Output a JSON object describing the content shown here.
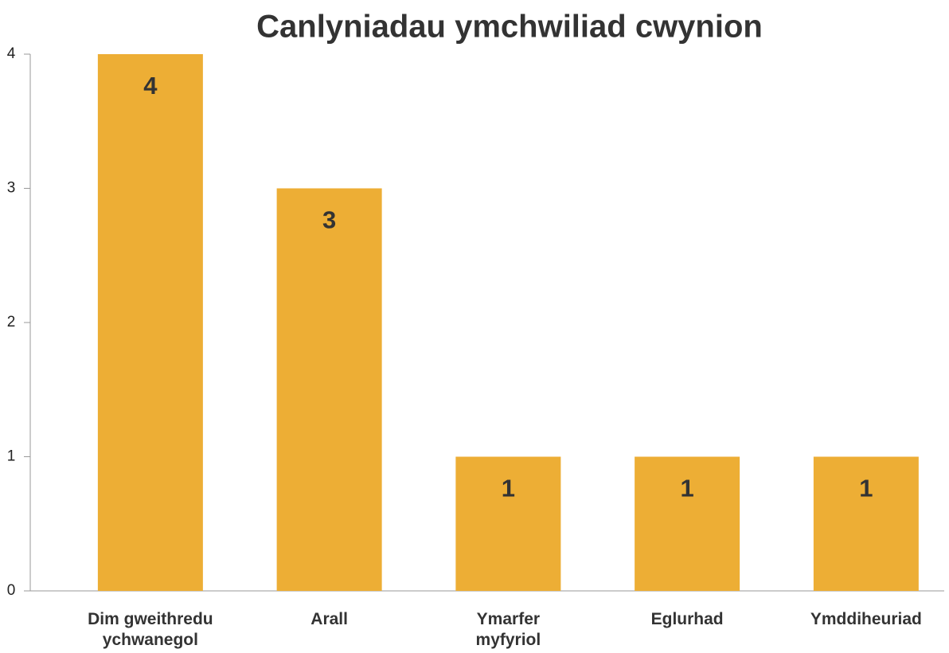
{
  "chart_data": {
    "type": "bar",
    "title": "Canlyniadau ymchwiliad cwynion",
    "categories": [
      "Dim gweithredu ychwanegol",
      "Arall",
      "Ymarfer myfyriol",
      "Eglurhad",
      "Ymddiheuriad"
    ],
    "values": [
      4,
      3,
      1,
      1,
      1
    ],
    "color": "#edae35",
    "ylim": [
      0,
      4
    ],
    "yticks": [
      0,
      1,
      2,
      3,
      4
    ],
    "grid": false
  }
}
